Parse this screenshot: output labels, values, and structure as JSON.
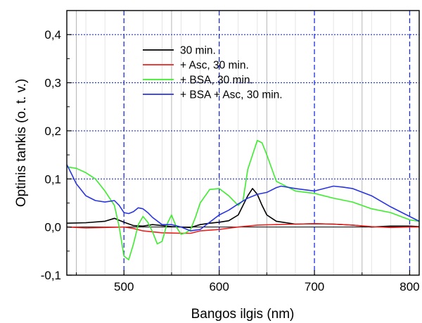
{
  "chart_data": {
    "type": "line",
    "xlabel": "Bangos ilgis (nm)",
    "ylabel": "Optinis tankis (o. t. v.)",
    "xlim": [
      440,
      810
    ],
    "ylim": [
      -0.1,
      0.45
    ],
    "x_major_ticks": [
      500,
      600,
      700,
      800
    ],
    "x_minor_ticks": [
      450,
      550,
      650,
      750
    ],
    "y_ticks": [
      -0.1,
      0.0,
      0.1,
      0.2,
      0.3,
      0.4
    ],
    "x_tick_labels": [
      "500",
      "600",
      "700",
      "800"
    ],
    "y_tick_labels": [
      "-0,1",
      "0,0",
      "0,1",
      "0,2",
      "0,3",
      "0,4"
    ],
    "grid": true,
    "legend_position": "top-center",
    "series": [
      {
        "name": "30 min.",
        "color": "#000000",
        "x": [
          440,
          460,
          480,
          490,
          500,
          510,
          520,
          530,
          540,
          550,
          560,
          570,
          580,
          590,
          600,
          610,
          620,
          630,
          635,
          640,
          645,
          650,
          660,
          680,
          700,
          720,
          740,
          760,
          780,
          800,
          810
        ],
        "y": [
          0.008,
          0.009,
          0.012,
          0.018,
          0.01,
          0.003,
          0.002,
          0.005,
          0.003,
          0.001,
          0.0,
          -0.001,
          0.005,
          0.008,
          0.01,
          0.013,
          0.025,
          0.065,
          0.08,
          0.068,
          0.045,
          0.025,
          0.012,
          0.006,
          0.007,
          0.006,
          0.004,
          0.0,
          0.002,
          0.002,
          0.001
        ]
      },
      {
        "name": "+ Asc, 30 min.",
        "color": "#e8231e",
        "x": [
          440,
          460,
          480,
          500,
          510,
          520,
          540,
          560,
          570,
          580,
          600,
          620,
          640,
          660,
          680,
          700,
          720,
          740,
          760,
          780,
          800,
          810
        ],
        "y": [
          0.0,
          -0.002,
          -0.001,
          0.0,
          -0.003,
          -0.008,
          -0.012,
          -0.013,
          -0.013,
          -0.008,
          -0.005,
          0.0,
          0.004,
          0.005,
          0.006,
          0.007,
          0.006,
          0.004,
          0.001,
          -0.001,
          0.0,
          0.0
        ]
      },
      {
        "name": "+ BSA, 30 min.",
        "color": "#3ded2e",
        "x": [
          440,
          450,
          460,
          470,
          480,
          490,
          495,
          500,
          505,
          510,
          515,
          520,
          525,
          530,
          535,
          540,
          545,
          550,
          555,
          560,
          565,
          570,
          575,
          580,
          590,
          600,
          610,
          620,
          625,
          630,
          640,
          645,
          650,
          660,
          680,
          700,
          720,
          740,
          760,
          780,
          800,
          810
        ],
        "y": [
          0.125,
          0.122,
          0.113,
          0.1,
          0.075,
          0.045,
          0.0,
          -0.06,
          -0.068,
          -0.035,
          0.005,
          0.022,
          0.01,
          -0.01,
          -0.035,
          -0.03,
          0.005,
          0.025,
          0.0,
          -0.015,
          -0.012,
          -0.005,
          0.02,
          0.05,
          0.078,
          0.08,
          0.065,
          0.045,
          0.055,
          0.12,
          0.18,
          0.175,
          0.15,
          0.095,
          0.075,
          0.07,
          0.06,
          0.052,
          0.038,
          0.03,
          0.015,
          0.012
        ]
      },
      {
        "name": "+ BSA + Asc, 30 min.",
        "color": "#2a35e0",
        "x": [
          440,
          445,
          450,
          460,
          470,
          480,
          490,
          495,
          500,
          505,
          510,
          515,
          520,
          525,
          530,
          540,
          550,
          560,
          570,
          580,
          590,
          600,
          610,
          620,
          630,
          640,
          650,
          660,
          665,
          680,
          700,
          720,
          730,
          740,
          760,
          780,
          800,
          810
        ],
        "y": [
          0.13,
          0.11,
          0.09,
          0.065,
          0.055,
          0.052,
          0.055,
          0.045,
          0.03,
          0.028,
          0.032,
          0.04,
          0.038,
          0.03,
          0.02,
          0.005,
          0.005,
          0.0,
          -0.008,
          -0.005,
          0.01,
          0.025,
          0.035,
          0.048,
          0.06,
          0.068,
          0.072,
          0.082,
          0.085,
          0.08,
          0.075,
          0.085,
          0.083,
          0.08,
          0.065,
          0.042,
          0.022,
          0.012
        ]
      }
    ]
  }
}
